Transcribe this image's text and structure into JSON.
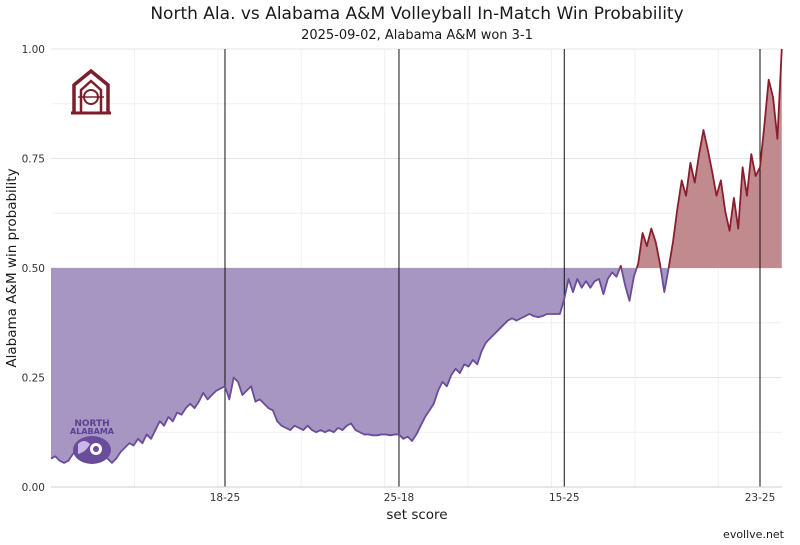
{
  "chart_data": {
    "type": "area",
    "title": "North Ala. vs Alabama A&M Volleyball In-Match Win Probability",
    "subtitle": "2025-09-02, Alabama A&M won 3-1",
    "xlabel": "set score",
    "ylabel": "Alabama A&M win probability",
    "ylim": [
      0,
      1
    ],
    "yticks": [
      "0.00",
      "0.25",
      "0.50",
      "0.75",
      "1.00"
    ],
    "xlim": [
      0,
      169
    ],
    "set_ends": [
      {
        "x": 40,
        "label": "18-25"
      },
      {
        "x": 80,
        "label": "25-18"
      },
      {
        "x": 118,
        "label": "15-25"
      },
      {
        "x": 163,
        "label": "23-25"
      }
    ],
    "baseline": 0.5,
    "colors": {
      "below": "#6a4c9c",
      "above": "#8b1e2d",
      "fill_below": "#a796c1",
      "fill_above": "#c08a8f"
    },
    "logos": {
      "top": "Alabama A&M logo",
      "bottom": "North Alabama logo",
      "bottom_text_1": "NORTH",
      "bottom_text_2": "ALABAMA"
    },
    "credit": "evollve.net",
    "series": [
      {
        "values": [
          0.065,
          0.07,
          0.06,
          0.055,
          0.06,
          0.075,
          0.085,
          0.08,
          0.09,
          0.075,
          0.09,
          0.08,
          0.07,
          0.065,
          0.055,
          0.065,
          0.08,
          0.09,
          0.1,
          0.095,
          0.11,
          0.1,
          0.12,
          0.11,
          0.13,
          0.15,
          0.14,
          0.16,
          0.15,
          0.17,
          0.165,
          0.18,
          0.19,
          0.18,
          0.195,
          0.215,
          0.2,
          0.21,
          0.22,
          0.225,
          0.23,
          0.2,
          0.25,
          0.24,
          0.21,
          0.22,
          0.23,
          0.195,
          0.2,
          0.19,
          0.18,
          0.175,
          0.15,
          0.14,
          0.135,
          0.13,
          0.14,
          0.135,
          0.13,
          0.14,
          0.13,
          0.125,
          0.13,
          0.125,
          0.13,
          0.125,
          0.135,
          0.13,
          0.14,
          0.145,
          0.13,
          0.125,
          0.12,
          0.12,
          0.118,
          0.118,
          0.12,
          0.12,
          0.118,
          0.12,
          0.12,
          0.11,
          0.115,
          0.105,
          0.12,
          0.14,
          0.16,
          0.175,
          0.19,
          0.22,
          0.24,
          0.23,
          0.255,
          0.27,
          0.26,
          0.28,
          0.275,
          0.29,
          0.28,
          0.31,
          0.33,
          0.34,
          0.35,
          0.36,
          0.37,
          0.38,
          0.385,
          0.38,
          0.385,
          0.39,
          0.395,
          0.39,
          0.388,
          0.39,
          0.395,
          0.395,
          0.395,
          0.395,
          0.43,
          0.475,
          0.445,
          0.475,
          0.455,
          0.47,
          0.455,
          0.47,
          0.475,
          0.44,
          0.475,
          0.49,
          0.48,
          0.505,
          0.46,
          0.425,
          0.48,
          0.51,
          0.58,
          0.55,
          0.59,
          0.56,
          0.51,
          0.445,
          0.5,
          0.56,
          0.635,
          0.7,
          0.665,
          0.74,
          0.695,
          0.76,
          0.815,
          0.77,
          0.72,
          0.665,
          0.7,
          0.63,
          0.585,
          0.66,
          0.59,
          0.73,
          0.665,
          0.76,
          0.71,
          0.73,
          0.825,
          0.93,
          0.89,
          0.795,
          1.0
        ]
      }
    ]
  }
}
